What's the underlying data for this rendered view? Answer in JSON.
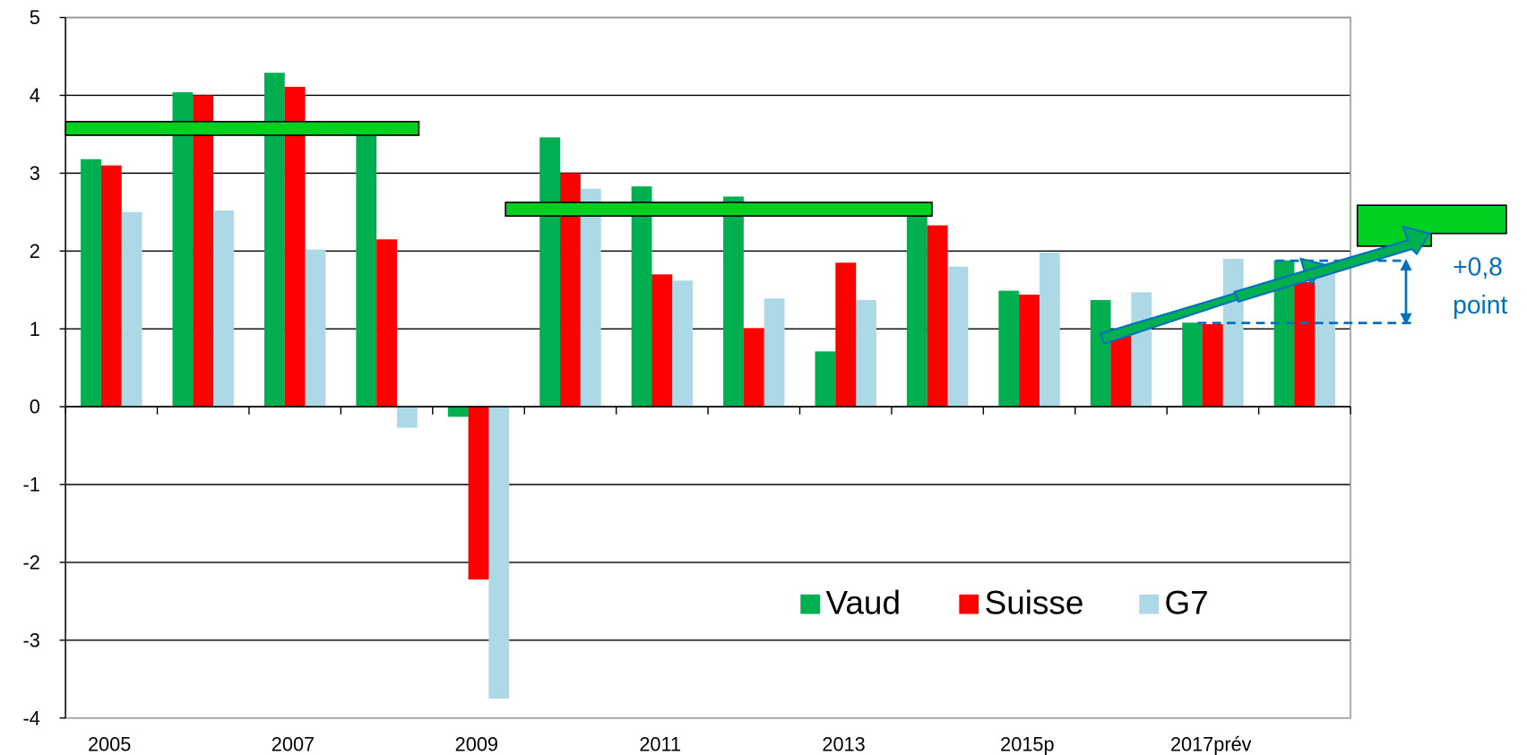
{
  "chart_data": {
    "type": "bar",
    "categories": [
      "2005",
      null,
      "2007",
      null,
      "2009",
      null,
      "2011",
      null,
      "2013",
      null,
      "2015p",
      null,
      "2017prév",
      null
    ],
    "series": [
      {
        "name": "Vaud",
        "color": "#00b050",
        "values": [
          3.18,
          4.04,
          4.29,
          3.55,
          -0.13,
          3.46,
          2.83,
          2.7,
          0.71,
          2.55,
          1.49,
          1.37,
          1.08,
          1.88
        ]
      },
      {
        "name": "Suisse",
        "color": "#ff0000",
        "values": [
          3.1,
          4.0,
          4.11,
          2.15,
          -2.22,
          3.0,
          1.7,
          1.01,
          1.85,
          2.33,
          1.44,
          0.95,
          1.06,
          1.6
        ]
      },
      {
        "name": "G7",
        "color": "#add8e6",
        "values": [
          2.5,
          2.52,
          2.02,
          -0.27,
          -3.75,
          2.8,
          1.62,
          1.39,
          1.37,
          1.8,
          1.98,
          1.47,
          1.9,
          1.8
        ]
      }
    ],
    "ylim": [
      -4,
      5
    ],
    "yticks": [
      -4,
      -3,
      -2,
      -1,
      0,
      1,
      2,
      3,
      4,
      5
    ],
    "grid": true,
    "legend": "bottom-right",
    "annotations": [
      "+0,8",
      "point"
    ]
  }
}
